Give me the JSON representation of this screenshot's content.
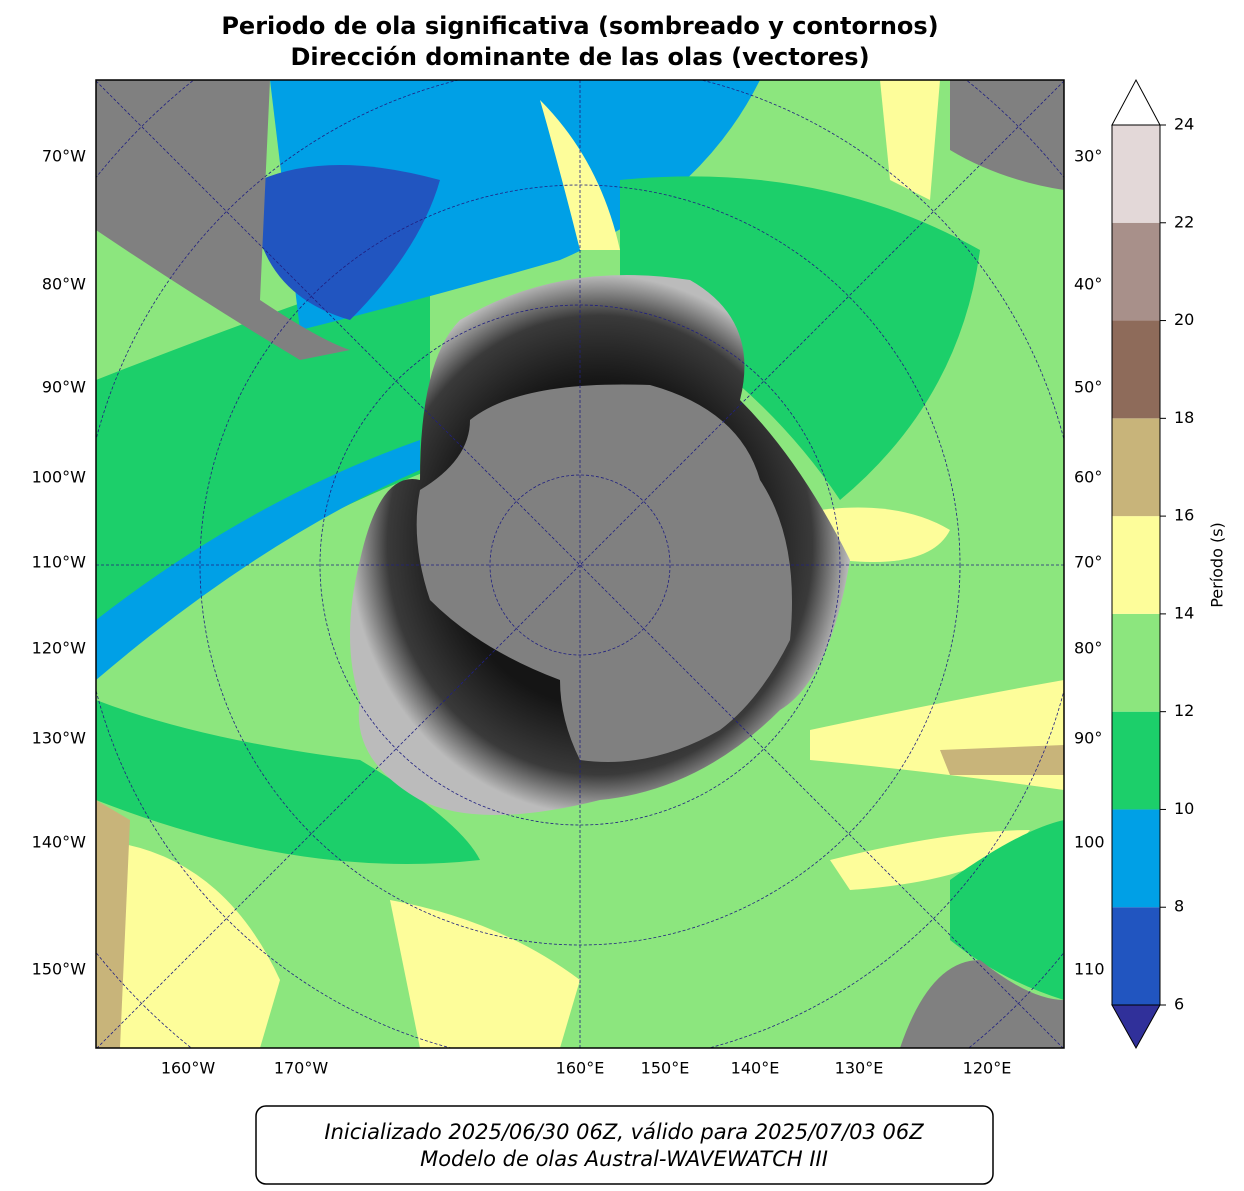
{
  "title": [
    "Periodo de ola significativa (sombreado y contornos)",
    "Dirección dominante de las olas (vectores)"
  ],
  "map": {
    "left_labels": [
      "70°W",
      "80°W",
      "90°W",
      "100°W",
      "110°W",
      "120°W",
      "130°W",
      "140°W",
      "150°W"
    ],
    "right_labels": [
      "30°",
      "40°",
      "50°",
      "60°",
      "70°",
      "80°",
      "90°",
      "100",
      "110"
    ],
    "bottom_labels": [
      "160°W",
      "170°W",
      "160°E",
      "150°E",
      "140°E",
      "130°E",
      "120°E"
    ]
  },
  "colorbar": {
    "label": "Período (s)",
    "ticks": [
      6,
      8,
      10,
      12,
      14,
      16,
      18,
      20,
      22,
      24
    ],
    "colors": [
      "#2155c0",
      "#00a0e6",
      "#1ccf6a",
      "#8ce67e",
      "#fdfd9a",
      "#c8b47a",
      "#8e6b5a",
      "#a8908a",
      "#e3d8d8"
    ],
    "under_color": "#30309a",
    "over_color": "#ffffff"
  },
  "footer": [
    "Inicializado 2025/06/30 06Z, válido para 2025/07/03 06Z",
    "Modelo de olas Austral-WAVEWATCH III"
  ]
}
